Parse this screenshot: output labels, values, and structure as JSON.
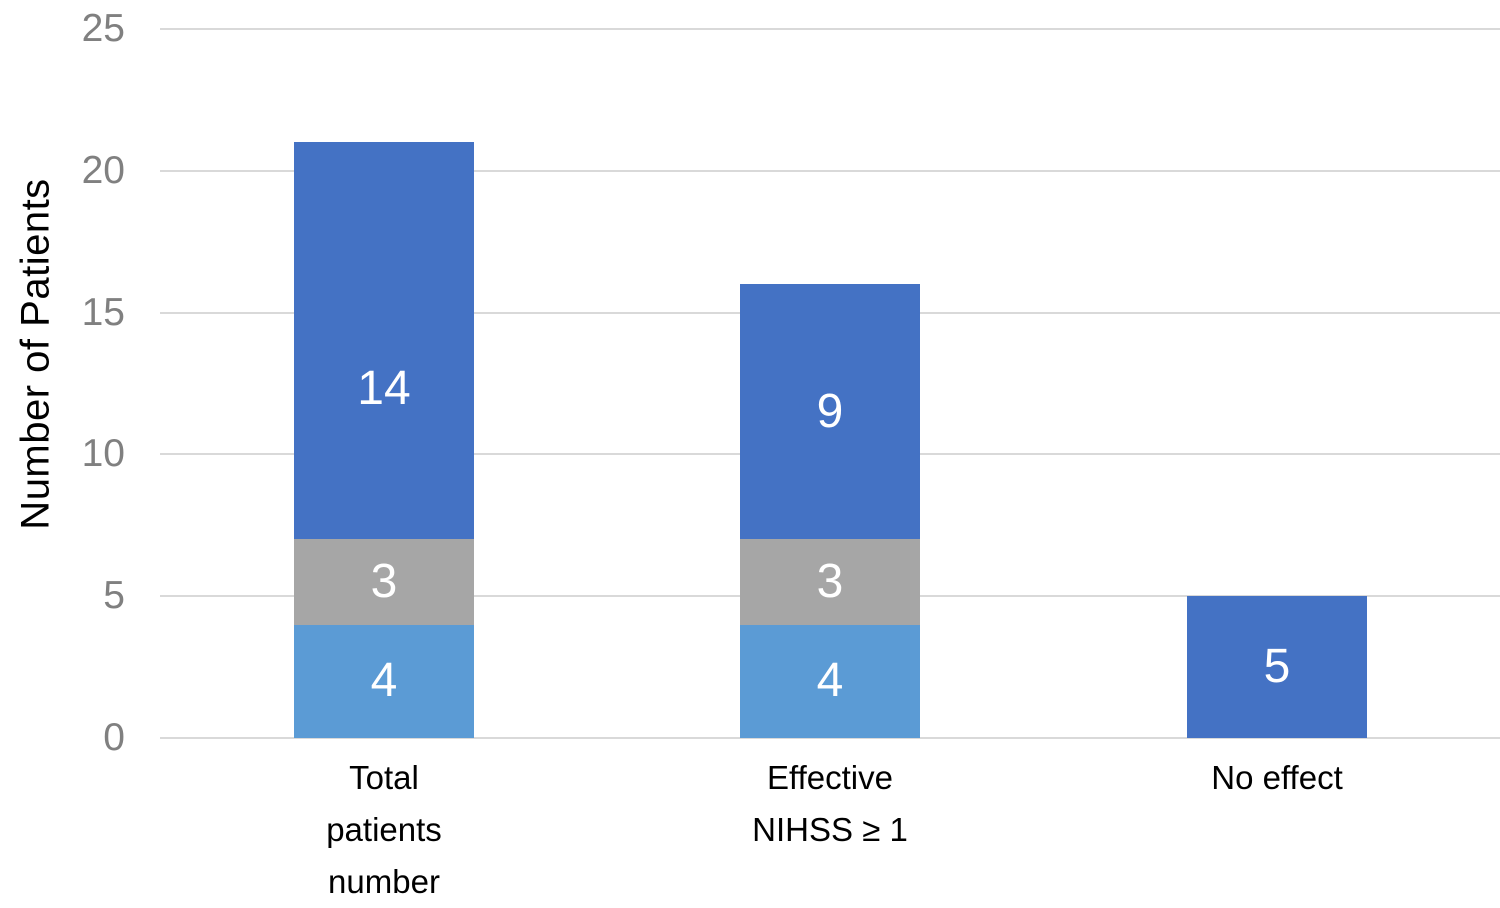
{
  "chart_data": {
    "type": "bar",
    "stacked": true,
    "title": "",
    "xlabel": "",
    "ylabel": "Number of Patients",
    "ylim": [
      0,
      25
    ],
    "yticks": [
      0,
      5,
      10,
      15,
      20,
      25
    ],
    "grid": true,
    "legend_position": "none",
    "categories": [
      "Total patients number",
      "Effective NIHSS ≥ 1",
      "No effect"
    ],
    "category_lines": [
      [
        "Total",
        "patients",
        "number"
      ],
      [
        "Effective",
        "NIHSS ≥ 1"
      ],
      [
        "No effect"
      ]
    ],
    "series": [
      {
        "name": "bottom-segment",
        "color": "#5B9BD5",
        "values": [
          4,
          4,
          0
        ],
        "labels": [
          "4",
          "4",
          ""
        ]
      },
      {
        "name": "middle-segment",
        "color": "#A6A6A6",
        "values": [
          3,
          3,
          0
        ],
        "labels": [
          "3",
          "3",
          ""
        ]
      },
      {
        "name": "top-segment",
        "color": "#4472C4",
        "values": [
          14,
          9,
          5
        ],
        "labels": [
          "14",
          "9",
          "5"
        ]
      }
    ],
    "bar_totals": [
      21,
      16,
      5
    ],
    "colors": {
      "data_label": "#FFFFFF",
      "tick_label": "#808080",
      "axis_text": "#000000",
      "gridline": "#D9D9D9"
    }
  }
}
